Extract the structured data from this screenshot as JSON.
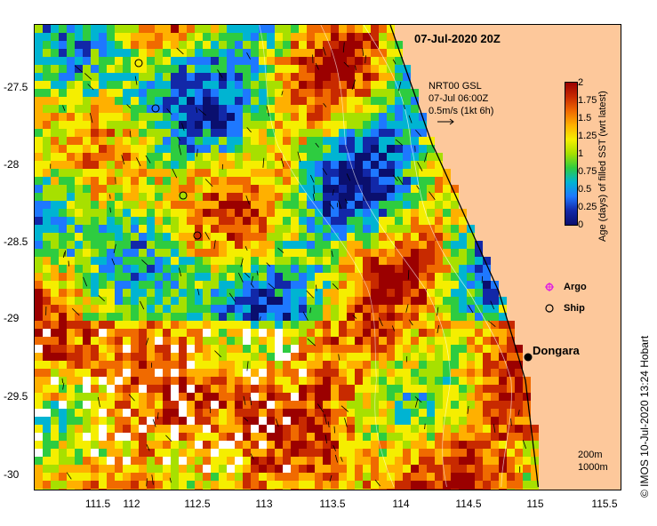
{
  "title": "07-Jul-2020 20Z",
  "vectors": {
    "source": "NRT00 GSL",
    "time": "07-Jul 06:00Z",
    "scale": "0.5m/s (1kt 6h)"
  },
  "x_ticks": [
    "111.5",
    "112",
    "112.5",
    "113",
    "113.5",
    "114",
    "114.5",
    "115",
    "115.5"
  ],
  "y_ticks": [
    "-27.5",
    "-28",
    "-28.5",
    "-29",
    "-29.5",
    "-30"
  ],
  "colorbar": {
    "title": "Age (days) of filled SST (wrt latest)",
    "ticks": [
      "2",
      "1.75",
      "1.5",
      "1.25",
      "1",
      "0.75",
      "0.5",
      "0.25",
      "0"
    ],
    "colors": [
      "#9b0000",
      "#c82a00",
      "#f06a00",
      "#ffb000",
      "#f5ee00",
      "#a7e000",
      "#2ecc40",
      "#00b4d2",
      "#1e78ff",
      "#1228a8",
      "#0a0f6e"
    ]
  },
  "legend": {
    "argo": "Argo",
    "ship": "Ship"
  },
  "town": "Dongara",
  "scale_bar": {
    "top": "200m",
    "bottom": "1000m"
  },
  "credit": "© IMOS 10-Jul-2020 13:24 Hobart",
  "colors": {
    "land": "#fdc89b",
    "coast": "#000000"
  }
}
